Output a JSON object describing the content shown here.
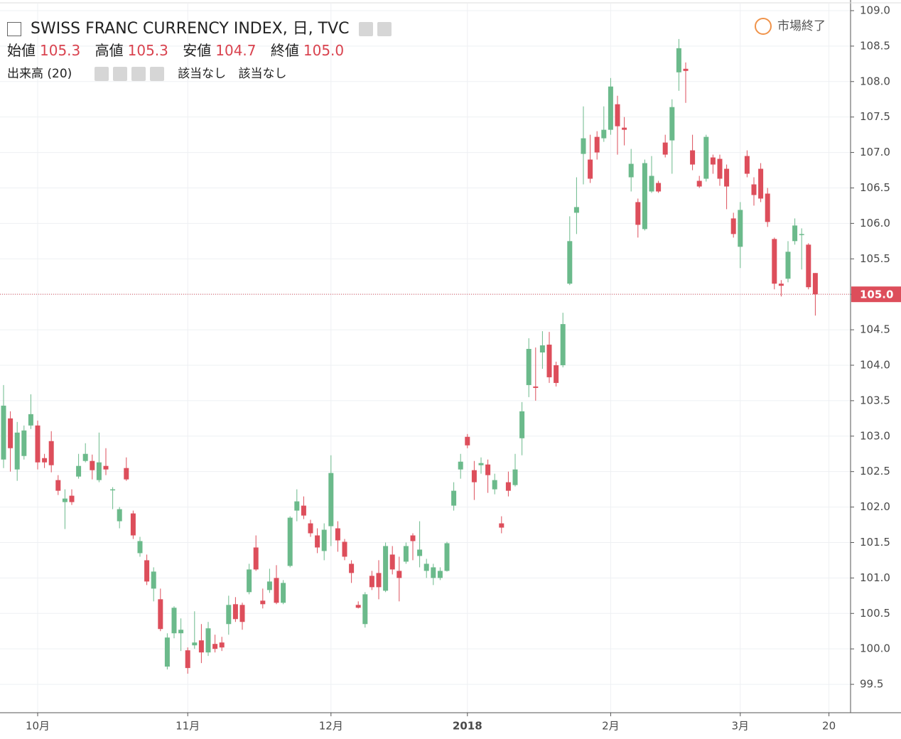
{
  "chart_data": {
    "type": "candlestick",
    "title": "SWISS FRANC CURRENCY INDEX, 日, TVC",
    "market_status": "市場終了",
    "volume_label": "出来高 (20)",
    "na_texts": [
      "該当なし",
      "該当なし"
    ],
    "ohlc_legend": [
      {
        "label": "始値",
        "value": "105.3"
      },
      {
        "label": "高値",
        "value": "105.3"
      },
      {
        "label": "安値",
        "value": "104.7"
      },
      {
        "label": "終値",
        "value": "105.0"
      }
    ],
    "up_color": "#6bba8b",
    "down_color": "#dd4e5b",
    "price_line": {
      "value": 105.0,
      "label": "105.0"
    },
    "ylim": [
      99.1,
      109.1
    ],
    "yticks": [
      {
        "value": 99.5,
        "label": "99.5"
      },
      {
        "value": 100,
        "label": "100.0"
      },
      100.5,
      {
        "value": 101,
        "label": "101.0"
      },
      101.5,
      {
        "value": 102,
        "label": "102.0"
      },
      102.5,
      {
        "value": 103,
        "label": "103.0"
      },
      103.5,
      {
        "value": 104,
        "label": "104.0"
      },
      104.5,
      {
        "value": 105,
        "label": "105.0"
      },
      105.5,
      {
        "value": 106,
        "label": "106.0"
      },
      106.5,
      {
        "value": 107,
        "label": "107.0"
      },
      107.5,
      {
        "value": 108,
        "label": "108.0"
      },
      108.5,
      {
        "value": 109,
        "label": "109.0"
      }
    ],
    "grid": true,
    "categories": [
      null,
      null,
      null,
      null,
      null,
      "10月",
      null,
      null,
      null,
      null,
      null,
      null,
      null,
      null,
      null,
      null,
      null,
      null,
      null,
      null,
      null,
      null,
      null,
      null,
      null,
      null,
      null,
      "11月",
      null,
      null,
      null,
      null,
      null,
      null,
      null,
      null,
      null,
      null,
      null,
      null,
      null,
      null,
      null,
      null,
      null,
      null,
      null,
      null,
      "12月",
      null,
      null,
      null,
      null,
      null,
      null,
      null,
      null,
      null,
      null,
      null,
      null,
      null,
      null,
      null,
      null,
      null,
      null,
      null,
      "2018",
      null,
      null,
      null,
      null,
      null,
      null,
      null,
      null,
      null,
      null,
      null,
      null,
      null,
      null,
      null,
      null,
      null,
      null,
      null,
      null,
      "2月",
      null,
      null,
      null,
      null,
      null,
      null,
      null,
      null,
      null,
      null,
      null,
      null,
      null,
      null,
      null,
      null,
      null,
      null,
      "3月",
      null,
      null,
      null,
      null,
      null,
      null,
      null,
      null,
      null,
      null,
      null,
      null,
      "20"
    ],
    "open": [
      102.67,
      103.25,
      102.53,
      102.72,
      103.15,
      103.15,
      102.69,
      102.93,
      102.38,
      102.07,
      102.16,
      102.43,
      102.65,
      102.65,
      102.38,
      102.58,
      102.24,
      101.8,
      102.55,
      101.91,
      101.35,
      101.25,
      100.85,
      100.7,
      99.75,
      100.22,
      100.22,
      99.98,
      100.05,
      100.12,
      99.95,
      100.07,
      100.09,
      100.35,
      100.63,
      100.62,
      100.8,
      101.43,
      100.68,
      100.83,
      101.0,
      100.65,
      101.17,
      101.95,
      102.02,
      101.77,
      101.6,
      101.38,
      101.73,
      101.7,
      101.51,
      101.2,
      100.62,
      100.35,
      101.03,
      101.07,
      100.82,
      101.33,
      101.1,
      101.23,
      101.6,
      101.31,
      101.1,
      101.0,
      101.0,
      101.1,
      102.02,
      102.53,
      102.99,
      102.52,
      102.59,
      102.6,
      102.25,
      101.77,
      102.35,
      102.31,
      102.97,
      103.72,
      103.7,
      104.18,
      104.29,
      104.0,
      104.0,
      105.15,
      106.15,
      106.98,
      106.9,
      107.22,
      107.2,
      107.32,
      107.68,
      107.35,
      106.65,
      106.3,
      105.92,
      106.45,
      106.57,
      107.14,
      107.17,
      108.13,
      108.18,
      107.03,
      106.6,
      106.63,
      106.93,
      106.91,
      106.77,
      106.07,
      105.67,
      106.95,
      106.55,
      106.77,
      106.42,
      105.78,
      105.15,
      105.22,
      105.75,
      105.84,
      105.7,
      105.3,
      null,
      null
    ],
    "high": [
      103.72,
      103.35,
      103.2,
      103.15,
      103.59,
      103.22,
      102.75,
      103.07,
      102.45,
      102.25,
      102.25,
      102.75,
      102.9,
      102.74,
      103.05,
      102.83,
      102.28,
      102.0,
      102.7,
      101.95,
      101.58,
      101.33,
      101.15,
      100.85,
      100.22,
      100.6,
      100.43,
      100.02,
      100.53,
      100.35,
      100.38,
      100.2,
      100.17,
      100.75,
      100.73,
      100.65,
      101.2,
      101.6,
      100.85,
      101.13,
      101.18,
      100.97,
      101.87,
      102.25,
      102.15,
      101.82,
      101.7,
      101.77,
      102.73,
      101.8,
      101.55,
      101.25,
      100.67,
      100.8,
      101.1,
      101.25,
      101.5,
      101.45,
      101.3,
      101.5,
      101.63,
      101.8,
      101.27,
      101.2,
      101.15,
      101.51,
      102.35,
      102.75,
      103.03,
      102.65,
      102.7,
      102.67,
      102.47,
      101.87,
      102.5,
      102.75,
      103.48,
      104.38,
      104.25,
      104.48,
      104.47,
      104.05,
      104.74,
      106.1,
      106.65,
      107.65,
      107.25,
      107.3,
      107.65,
      108.05,
      107.8,
      107.5,
      107.05,
      106.35,
      106.9,
      106.95,
      106.6,
      107.25,
      107.75,
      108.6,
      108.27,
      107.25,
      106.67,
      107.25,
      106.97,
      106.97,
      106.83,
      106.15,
      106.3,
      107.03,
      106.65,
      106.85,
      106.5,
      105.8,
      105.2,
      105.75,
      106.07,
      105.93,
      105.72,
      105.3,
      null,
      null
    ],
    "low": [
      102.55,
      102.5,
      102.37,
      102.67,
      103.1,
      102.53,
      102.55,
      102.49,
      102.17,
      101.69,
      102.03,
      102.4,
      102.63,
      102.39,
      102.35,
      102.45,
      101.97,
      101.7,
      102.37,
      101.55,
      101.3,
      100.9,
      100.67,
      100.25,
      99.71,
      100.15,
      99.97,
      99.65,
      100.0,
      99.8,
      99.9,
      99.95,
      99.97,
      100.2,
      100.38,
      100.27,
      100.77,
      101.1,
      100.57,
      100.79,
      100.63,
      100.63,
      101.15,
      101.8,
      101.83,
      101.58,
      101.35,
      101.25,
      101.45,
      101.37,
      101.25,
      100.93,
      100.57,
      100.3,
      100.83,
      100.7,
      100.8,
      101.05,
      100.67,
      101.2,
      101.25,
      101.15,
      101.0,
      100.9,
      100.97,
      101.09,
      101.95,
      102.4,
      102.83,
      102.1,
      102.47,
      102.2,
      102.18,
      101.63,
      102.15,
      102.29,
      102.73,
      103.55,
      103.5,
      103.95,
      103.75,
      103.7,
      103.97,
      105.13,
      105.85,
      106.55,
      106.57,
      106.9,
      107.15,
      107.25,
      106.97,
      107.1,
      106.45,
      105.8,
      105.9,
      106.43,
      106.43,
      106.93,
      106.7,
      107.87,
      107.7,
      106.75,
      106.5,
      106.59,
      106.7,
      106.53,
      106.2,
      105.8,
      105.37,
      106.65,
      106.25,
      106.3,
      105.95,
      105.07,
      104.97,
      105.17,
      105.7,
      105.35,
      105.07,
      104.7,
      null,
      null
    ],
    "close": [
      103.43,
      102.83,
      103.05,
      103.08,
      103.31,
      102.63,
      102.63,
      102.59,
      102.23,
      102.12,
      102.07,
      102.58,
      102.75,
      102.52,
      102.63,
      102.53,
      102.25,
      101.97,
      102.39,
      101.6,
      101.52,
      100.95,
      101.09,
      100.28,
      100.16,
      100.58,
      100.27,
      99.73,
      100.09,
      99.95,
      100.29,
      100.0,
      100.02,
      100.62,
      100.42,
      100.38,
      101.12,
      101.12,
      100.63,
      100.95,
      100.65,
      100.93,
      101.85,
      102.08,
      101.88,
      101.63,
      101.43,
      101.68,
      102.48,
      101.53,
      101.3,
      101.07,
      100.58,
      100.77,
      100.87,
      100.87,
      101.45,
      101.12,
      101.0,
      101.45,
      101.52,
      101.4,
      101.2,
      101.15,
      101.1,
      101.49,
      102.23,
      102.64,
      102.87,
      102.35,
      102.62,
      102.45,
      102.38,
      101.71,
      102.23,
      102.53,
      103.35,
      104.23,
      103.68,
      104.28,
      103.83,
      103.75,
      104.58,
      105.75,
      106.23,
      107.2,
      106.63,
      107.0,
      107.32,
      107.93,
      107.37,
      107.32,
      106.84,
      105.98,
      106.85,
      106.67,
      106.45,
      106.97,
      107.64,
      108.47,
      108.15,
      106.83,
      106.52,
      107.22,
      106.83,
      106.63,
      106.52,
      105.85,
      106.19,
      106.7,
      106.4,
      106.35,
      106.02,
      105.15,
      105.12,
      105.6,
      105.97,
      105.85,
      105.1,
      105.0,
      null,
      null
    ]
  }
}
